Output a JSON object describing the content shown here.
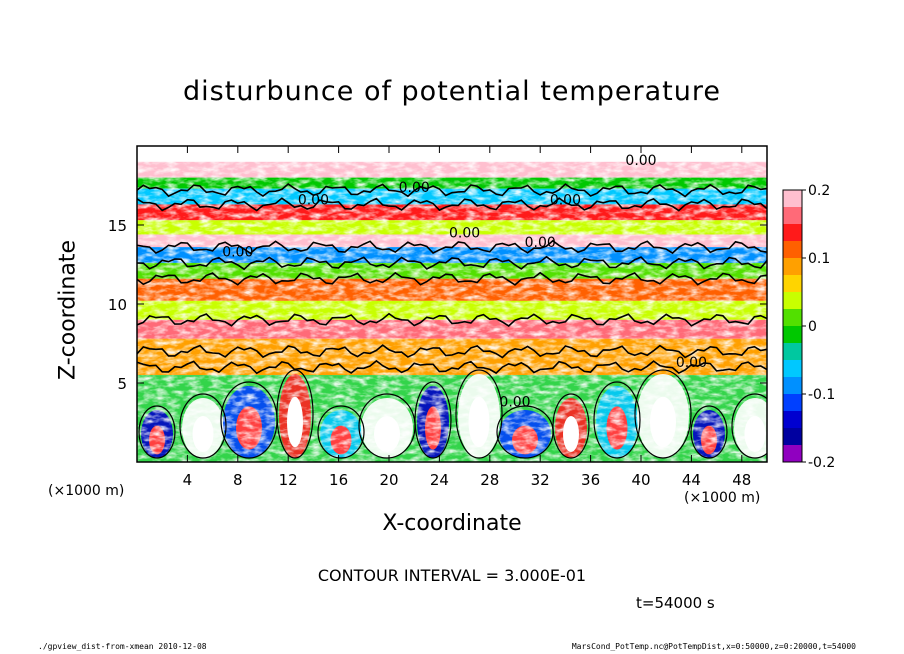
{
  "chart_data": {
    "type": "heatmap",
    "title": "disturbunce of potential temperature",
    "xlabel": "X-coordinate",
    "ylabel": "Z-coordinate",
    "x_unit_left": "(×1000 m)",
    "x_unit_right": "(×1000 m)",
    "xlim": [
      0,
      50
    ],
    "ylim": [
      0,
      20
    ],
    "x_ticks": [
      4,
      8,
      12,
      16,
      20,
      24,
      28,
      32,
      36,
      40,
      44,
      48
    ],
    "y_ticks": [
      5,
      10,
      15
    ],
    "colorbar": {
      "range": [
        -0.2,
        0.2
      ],
      "ticks": [
        "0.2",
        "0.1",
        "0",
        "-0.1",
        "-0.2"
      ],
      "tick_values": [
        0.2,
        0.1,
        0,
        -0.1,
        -0.2
      ],
      "colors": [
        "#ffbfcf",
        "#ff6a78",
        "#ff1a1a",
        "#ff6000",
        "#ffa000",
        "#ffd400",
        "#c8ff00",
        "#52e000",
        "#00c800",
        "#00c8a0",
        "#00c8ff",
        "#0090ff",
        "#0040ff",
        "#0000d0",
        "#0000a0",
        "#9000c0"
      ]
    },
    "contour_labels": [
      "0.00",
      "0.00",
      "0.00",
      "0.00",
      "0.00",
      "0.00",
      "0.00",
      "0.00",
      "0.00"
    ],
    "bands": [
      {
        "z": [
          18.0,
          19.0
        ],
        "value": 0.2
      },
      {
        "z": [
          17.3,
          18.0
        ],
        "value": 0.0
      },
      {
        "z": [
          16.3,
          17.3
        ],
        "value": -0.05
      },
      {
        "z": [
          15.3,
          16.3
        ],
        "value": 0.15
      },
      {
        "z": [
          14.4,
          15.3
        ],
        "value": 0.05
      },
      {
        "z": [
          13.6,
          14.4
        ],
        "value": 0.18
      },
      {
        "z": [
          12.6,
          13.6
        ],
        "value": -0.08
      },
      {
        "z": [
          11.6,
          12.6
        ],
        "value": 0.02
      },
      {
        "z": [
          10.2,
          11.6
        ],
        "value": 0.12
      },
      {
        "z": [
          9.0,
          10.2
        ],
        "value": 0.05
      },
      {
        "z": [
          7.8,
          9.0
        ],
        "value": 0.17
      },
      {
        "z": [
          6.8,
          7.8
        ],
        "value": 0.08
      },
      {
        "z": [
          5.5,
          6.8
        ],
        "value": 0.1
      }
    ],
    "grid": false,
    "legend": "right"
  },
  "annotations": {
    "contour_interval": "CONTOUR INTERVAL = 3.000E-01",
    "time": "t=54000 s",
    "footer_left": "./gpview_dist-from-xmean  2010-12-08",
    "footer_right": "MarsCond_PotTemp.nc@PotTempDist,x=0:50000,z=0:20000,t=54000"
  }
}
